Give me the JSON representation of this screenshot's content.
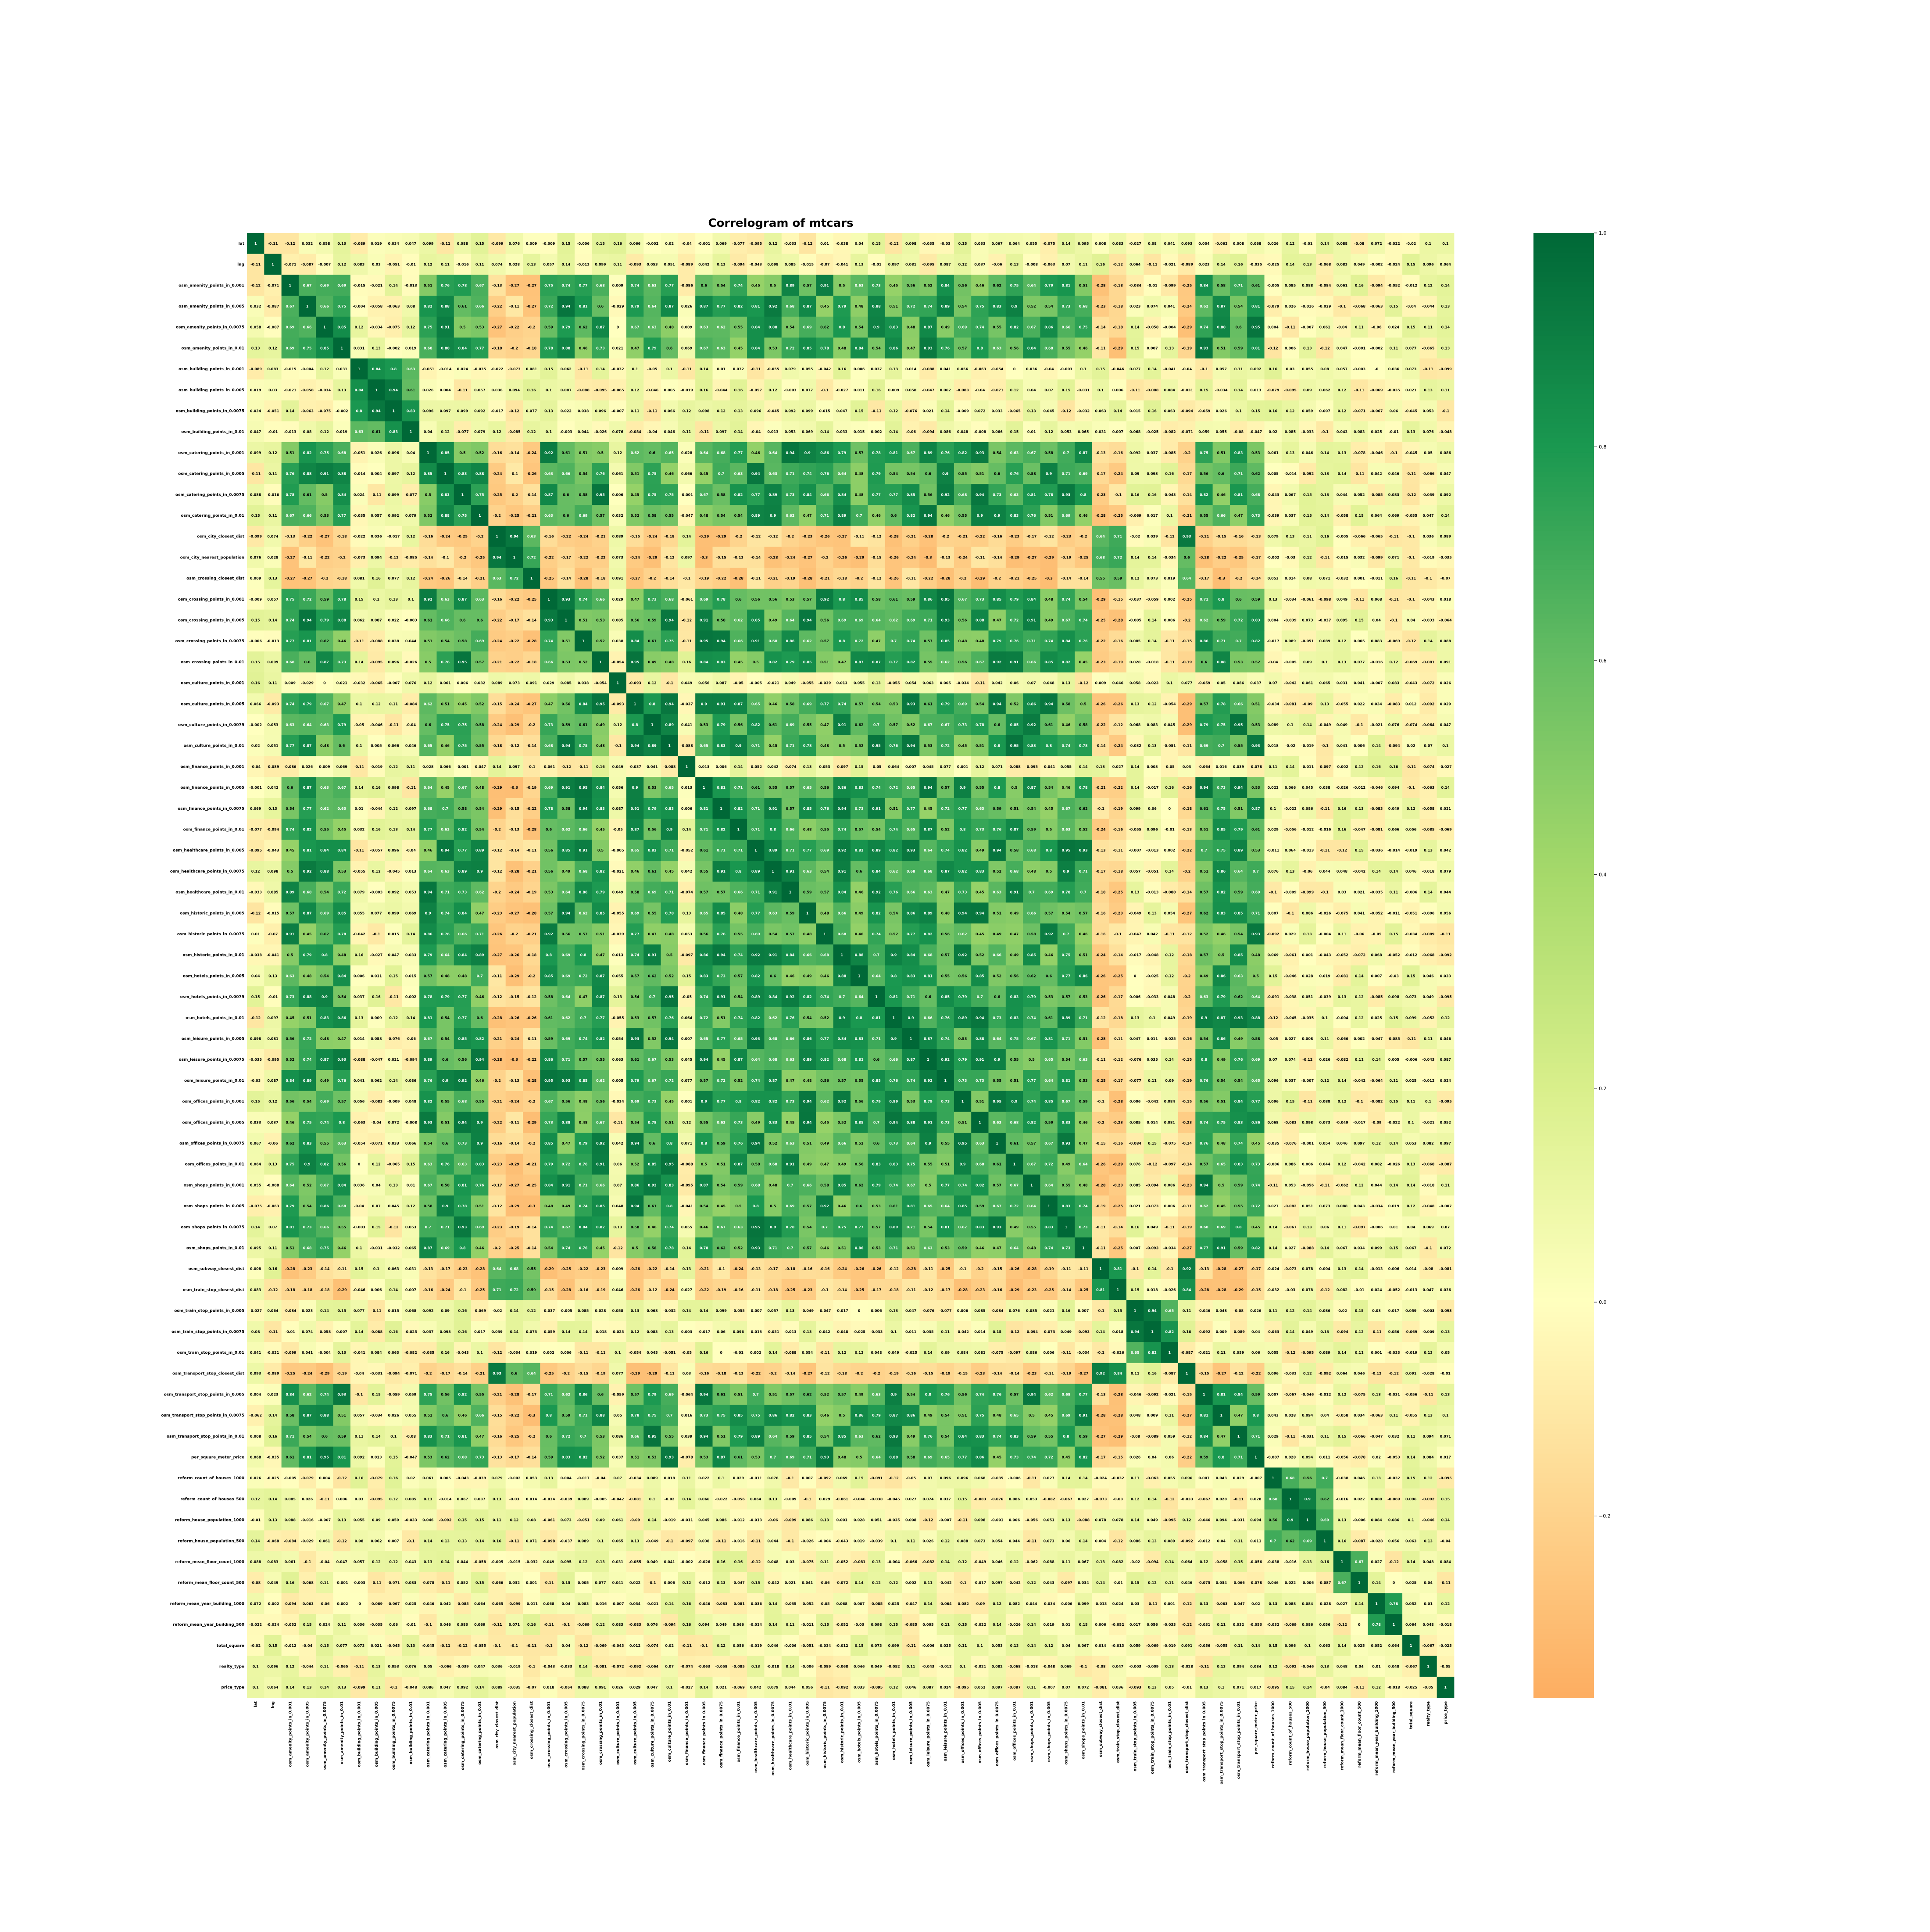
{
  "chart_data": {
    "type": "heatmap",
    "title": "Correlogram of mtcars",
    "labels": [
      "lat",
      "lng",
      "osm_amenity_points_in_0.001",
      "osm_amenity_points_in_0.005",
      "osm_amenity_points_in_0.0075",
      "osm_amenity_points_in_0.01",
      "osm_building_points_in_0.001",
      "osm_building_points_in_0.005",
      "osm_building_points_in_0.0075",
      "osm_building_points_in_0.01",
      "osm_catering_points_in_0.001",
      "osm_catering_points_in_0.005",
      "osm_catering_points_in_0.0075",
      "osm_catering_points_in_0.01",
      "osm_city_closest_dist",
      "osm_city_nearest_population",
      "osm_crossing_closest_dist",
      "osm_crossing_points_in_0.001",
      "osm_crossing_points_in_0.005",
      "osm_crossing_points_in_0.0075",
      "osm_crossing_points_in_0.01",
      "osm_culture_points_in_0.001",
      "osm_culture_points_in_0.005",
      "osm_culture_points_in_0.0075",
      "osm_culture_points_in_0.01",
      "osm_finance_points_in_0.001",
      "osm_finance_points_in_0.005",
      "osm_finance_points_in_0.0075",
      "osm_finance_points_in_0.01",
      "osm_healthcare_points_in_0.005",
      "osm_healthcare_points_in_0.0075",
      "osm_healthcare_points_in_0.01",
      "osm_historic_points_in_0.005",
      "osm_historic_points_in_0.0075",
      "osm_historic_points_in_0.01",
      "osm_hotels_points_in_0.005",
      "osm_hotels_points_in_0.0075",
      "osm_hotels_points_in_0.01",
      "osm_leisure_points_in_0.005",
      "osm_leisure_points_in_0.0075",
      "osm_leisure_points_in_0.01",
      "osm_offices_points_in_0.001",
      "osm_offices_points_in_0.005",
      "osm_offices_points_in_0.0075",
      "osm_offices_points_in_0.01",
      "osm_shops_points_in_0.001",
      "osm_shops_points_in_0.005",
      "osm_shops_points_in_0.0075",
      "osm_shops_points_in_0.01",
      "osm_subway_closest_dist",
      "osm_train_stop_closest_dist",
      "osm_train_stop_points_in_0.005",
      "osm_train_stop_points_in_0.0075",
      "osm_train_stop_points_in_0.01",
      "osm_transport_stop_closest_dist",
      "osm_transport_stop_points_in_0.005",
      "osm_transport_stop_points_in_0.0075",
      "osm_transport_stop_points_in_0.01",
      "per_square_meter_price",
      "reform_count_of_houses_1000",
      "reform_count_of_houses_500",
      "reform_house_population_1000",
      "reform_house_population_500",
      "reform_mean_floor_count_1000",
      "reform_mean_floor_count_500",
      "reform_mean_year_building_1000",
      "reform_mean_year_building_500",
      "total_square",
      "realty_type",
      "price_type"
    ],
    "groups": [
      [
        2,
        3,
        4,
        5,
        10,
        11,
        12,
        13,
        17,
        18,
        19,
        20,
        22,
        23,
        24,
        26,
        27,
        28,
        29,
        30,
        31,
        32,
        33,
        34,
        35,
        36,
        37,
        38,
        39,
        40,
        41,
        42,
        43,
        44,
        45,
        46,
        47,
        48,
        55,
        56,
        57,
        58
      ],
      [
        6,
        7,
        8,
        9
      ],
      [
        14,
        15,
        16,
        49,
        50,
        54
      ],
      [
        51,
        52,
        53
      ],
      [
        59,
        60,
        61,
        62
      ],
      [
        63,
        64
      ],
      [
        65,
        66
      ]
    ],
    "colorbar": {
      "min": -0.37,
      "max": 1.0,
      "ticks": [
        -0.2,
        0.0,
        0.2,
        0.4,
        0.6,
        0.8,
        1.0
      ]
    },
    "colormap": "RdYlGn (center)",
    "colors": {
      "low": "#fdb863",
      "mid": "#ffffbf",
      "high": "#006837",
      "annotation_dark": "#000000",
      "annotation_light": "#ffffff"
    }
  }
}
